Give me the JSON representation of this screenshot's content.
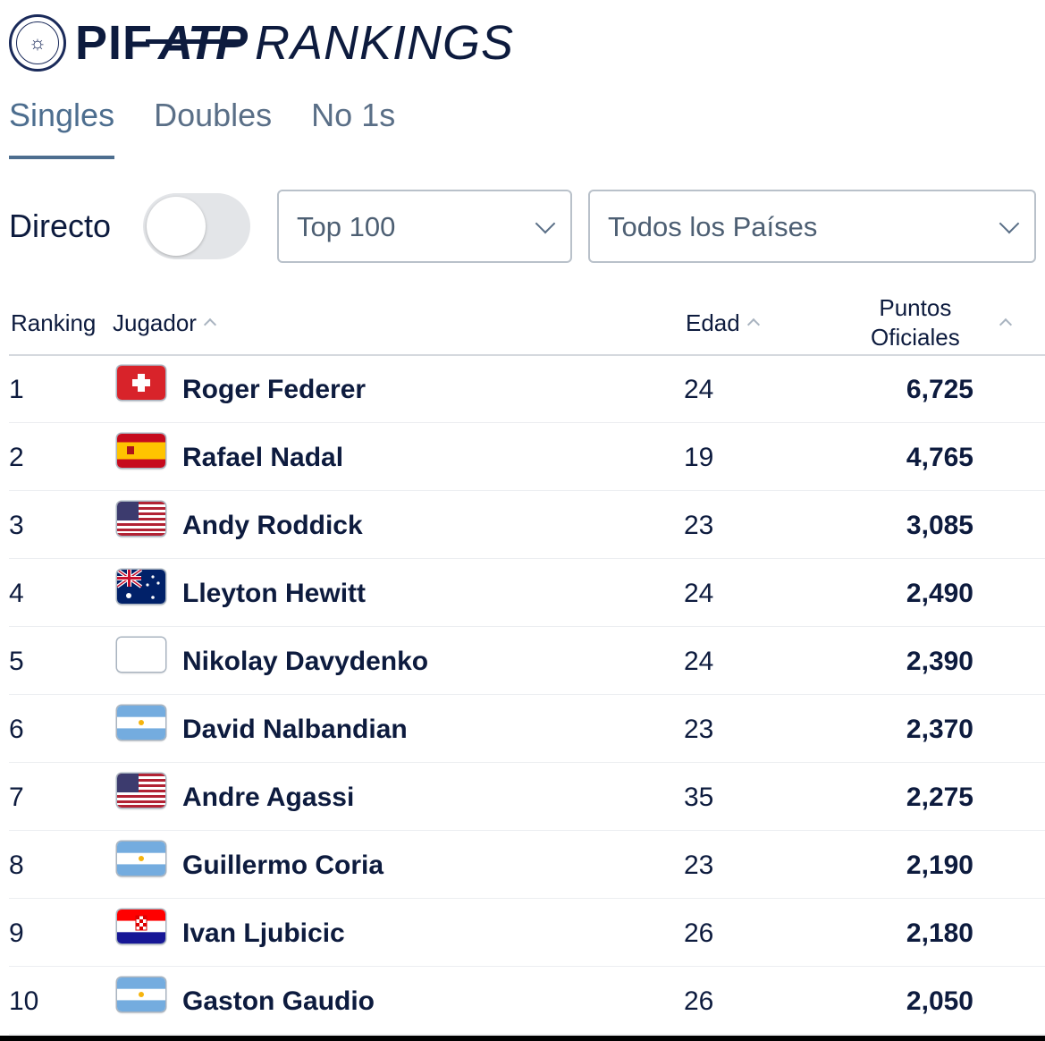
{
  "header": {
    "brand_pif": "PIF",
    "brand_atp": "ATP",
    "brand_rankings": "RANKINGS",
    "seal_icon": "palm-swords-emblem-icon"
  },
  "tabs": [
    {
      "label": "Singles",
      "active": true
    },
    {
      "label": "Doubles",
      "active": false
    },
    {
      "label": "No 1s",
      "active": false
    }
  ],
  "filters": {
    "live_label": "Directo",
    "live_on": false,
    "range_select": "Top 100",
    "country_select": "Todos los Países"
  },
  "table": {
    "headers": {
      "ranking": "Ranking",
      "player": "Jugador",
      "age": "Edad",
      "points_line1": "Puntos",
      "points_line2": "Oficiales"
    },
    "rows": [
      {
        "rank": "1",
        "flag": "switzerland",
        "name": "Roger Federer",
        "age": "24",
        "points": "6,725"
      },
      {
        "rank": "2",
        "flag": "spain",
        "name": "Rafael Nadal",
        "age": "19",
        "points": "4,765"
      },
      {
        "rank": "3",
        "flag": "usa",
        "name": "Andy Roddick",
        "age": "23",
        "points": "3,085"
      },
      {
        "rank": "4",
        "flag": "australia",
        "name": "Lleyton Hewitt",
        "age": "24",
        "points": "2,490"
      },
      {
        "rank": "5",
        "flag": "blank",
        "name": "Nikolay Davydenko",
        "age": "24",
        "points": "2,390"
      },
      {
        "rank": "6",
        "flag": "argentina",
        "name": "David Nalbandian",
        "age": "23",
        "points": "2,370"
      },
      {
        "rank": "7",
        "flag": "usa",
        "name": "Andre Agassi",
        "age": "35",
        "points": "2,275"
      },
      {
        "rank": "8",
        "flag": "argentina",
        "name": "Guillermo Coria",
        "age": "23",
        "points": "2,190"
      },
      {
        "rank": "9",
        "flag": "croatia",
        "name": "Ivan Ljubicic",
        "age": "26",
        "points": "2,180"
      },
      {
        "rank": "10",
        "flag": "argentina",
        "name": "Gaston Gaudio",
        "age": "26",
        "points": "2,050"
      }
    ]
  },
  "colors": {
    "navy": "#0d1b3e",
    "tab_active": "#4d6e8f",
    "tab_inactive": "#5a6f87"
  }
}
